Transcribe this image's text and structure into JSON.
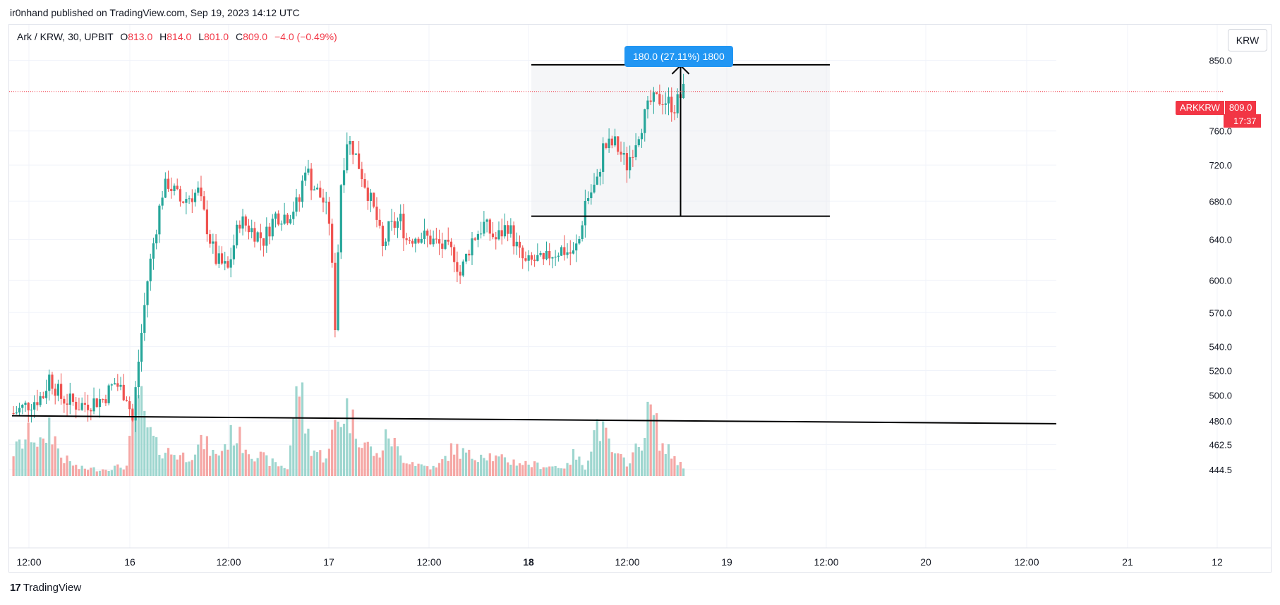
{
  "header": {
    "publisher_text": "ir0nhand published on TradingView.com, Sep 19, 2023 14:12 UTC"
  },
  "legend": {
    "symbol": "Ark / KRW, 30, UPBIT",
    "open_key": "O",
    "open": "813.0",
    "high_key": "H",
    "high": "814.0",
    "low_key": "L",
    "low": "801.0",
    "close_key": "C",
    "close": "809.0",
    "change": "−4.0 (−0.49%)"
  },
  "currency_button": "KRW",
  "measure": {
    "label": "180.0 (27.11%) 1800"
  },
  "price_tag": {
    "symbol": "ARKKRW",
    "price": "809.0",
    "countdown": "17:37"
  },
  "footer": {
    "brand": "TradingView",
    "logo_text": "17"
  },
  "colors": {
    "up": "#26a69a",
    "down": "#ef5350",
    "up_vol": "#9ed6cf",
    "down_vol": "#f5a7a5",
    "accent": "#2196f3",
    "last_price": "#f23645"
  },
  "chart_data": {
    "type": "candlestick",
    "symbol": "Ark / KRW",
    "interval": "30",
    "exchange": "UPBIT",
    "y_axis_ticks": [
      "850.0",
      "760.0",
      "720.0",
      "680.0",
      "640.0",
      "600.0",
      "570.0",
      "540.0",
      "520.0",
      "500.0",
      "480.0",
      "462.5",
      "444.5"
    ],
    "y_scale": "log",
    "y_range": [
      440,
      862
    ],
    "x_axis_ticks": [
      "12:00",
      "16",
      "12:00",
      "17",
      "12:00",
      "18",
      "12:00",
      "19",
      "12:00",
      "20",
      "12:00",
      "21",
      "12"
    ],
    "bold_x_ticks": [
      "18"
    ],
    "last_price": 809.0,
    "closes_path": [
      [
        0,
        486
      ],
      [
        10,
        500
      ],
      [
        12,
        515
      ],
      [
        16,
        498
      ],
      [
        22,
        492
      ],
      [
        30,
        497
      ],
      [
        34,
        510
      ],
      [
        38,
        500
      ],
      [
        40,
        480
      ],
      [
        45,
        600
      ],
      [
        50,
        690
      ],
      [
        52,
        700
      ],
      [
        56,
        680
      ],
      [
        62,
        690
      ],
      [
        66,
        640
      ],
      [
        68,
        620
      ],
      [
        72,
        610
      ],
      [
        76,
        660
      ],
      [
        80,
        650
      ],
      [
        84,
        640
      ],
      [
        88,
        665
      ],
      [
        92,
        665
      ],
      [
        96,
        680
      ],
      [
        98,
        720
      ],
      [
        100,
        700
      ],
      [
        104,
        680
      ],
      [
        106,
        660
      ],
      [
        108,
        560
      ],
      [
        110,
        700
      ],
      [
        112,
        750
      ],
      [
        114,
        740
      ],
      [
        118,
        700
      ],
      [
        122,
        660
      ],
      [
        124,
        630
      ],
      [
        126,
        650
      ],
      [
        130,
        660
      ],
      [
        132,
        640
      ],
      [
        136,
        645
      ],
      [
        140,
        640
      ],
      [
        148,
        625
      ],
      [
        150,
        605
      ],
      [
        154,
        640
      ],
      [
        158,
        655
      ],
      [
        162,
        640
      ],
      [
        166,
        655
      ],
      [
        170,
        625
      ],
      [
        172,
        615
      ],
      [
        176,
        620
      ],
      [
        178,
        615
      ],
      [
        180,
        625
      ],
      [
        184,
        630
      ],
      [
        188,
        625
      ],
      [
        190,
        640
      ],
      [
        192,
        680
      ],
      [
        196,
        700
      ],
      [
        198,
        740
      ],
      [
        202,
        745
      ],
      [
        206,
        720
      ],
      [
        210,
        760
      ],
      [
        214,
        795
      ],
      [
        218,
        800
      ],
      [
        222,
        790
      ],
      [
        225,
        809
      ]
    ],
    "volume_path": [
      [
        0,
        0.25
      ],
      [
        6,
        0.45
      ],
      [
        10,
        0.3
      ],
      [
        12,
        0.55
      ],
      [
        16,
        0.2
      ],
      [
        22,
        0.08
      ],
      [
        30,
        0.07
      ],
      [
        34,
        0.09
      ],
      [
        38,
        0.1
      ],
      [
        40,
        0.55
      ],
      [
        42,
        0.9
      ],
      [
        44,
        0.55
      ],
      [
        48,
        0.3
      ],
      [
        52,
        0.25
      ],
      [
        58,
        0.2
      ],
      [
        64,
        0.35
      ],
      [
        68,
        0.2
      ],
      [
        74,
        0.45
      ],
      [
        80,
        0.25
      ],
      [
        86,
        0.15
      ],
      [
        92,
        0.08
      ],
      [
        94,
        0.6
      ],
      [
        96,
        1.0
      ],
      [
        98,
        0.55
      ],
      [
        100,
        0.3
      ],
      [
        104,
        0.2
      ],
      [
        106,
        0.25
      ],
      [
        108,
        0.55
      ],
      [
        112,
        0.7
      ],
      [
        114,
        0.55
      ],
      [
        118,
        0.35
      ],
      [
        122,
        0.2
      ],
      [
        124,
        0.3
      ],
      [
        126,
        0.45
      ],
      [
        130,
        0.2
      ],
      [
        136,
        0.12
      ],
      [
        142,
        0.08
      ],
      [
        148,
        0.3
      ],
      [
        150,
        0.25
      ],
      [
        154,
        0.2
      ],
      [
        158,
        0.25
      ],
      [
        162,
        0.18
      ],
      [
        168,
        0.15
      ],
      [
        174,
        0.12
      ],
      [
        180,
        0.1
      ],
      [
        186,
        0.1
      ],
      [
        188,
        0.22
      ],
      [
        192,
        0.1
      ],
      [
        196,
        0.55
      ],
      [
        198,
        0.45
      ],
      [
        202,
        0.2
      ],
      [
        206,
        0.15
      ],
      [
        210,
        0.3
      ],
      [
        214,
        0.7
      ],
      [
        218,
        0.3
      ],
      [
        222,
        0.2
      ],
      [
        225,
        0.08
      ]
    ],
    "measure_tool": {
      "from_price": 664,
      "to_price": 844,
      "change": 180.0,
      "change_pct": 27.11,
      "bars": 1800
    },
    "trendline": {
      "from": [
        0,
        484
      ],
      "to": [
        236,
        478
      ]
    }
  }
}
